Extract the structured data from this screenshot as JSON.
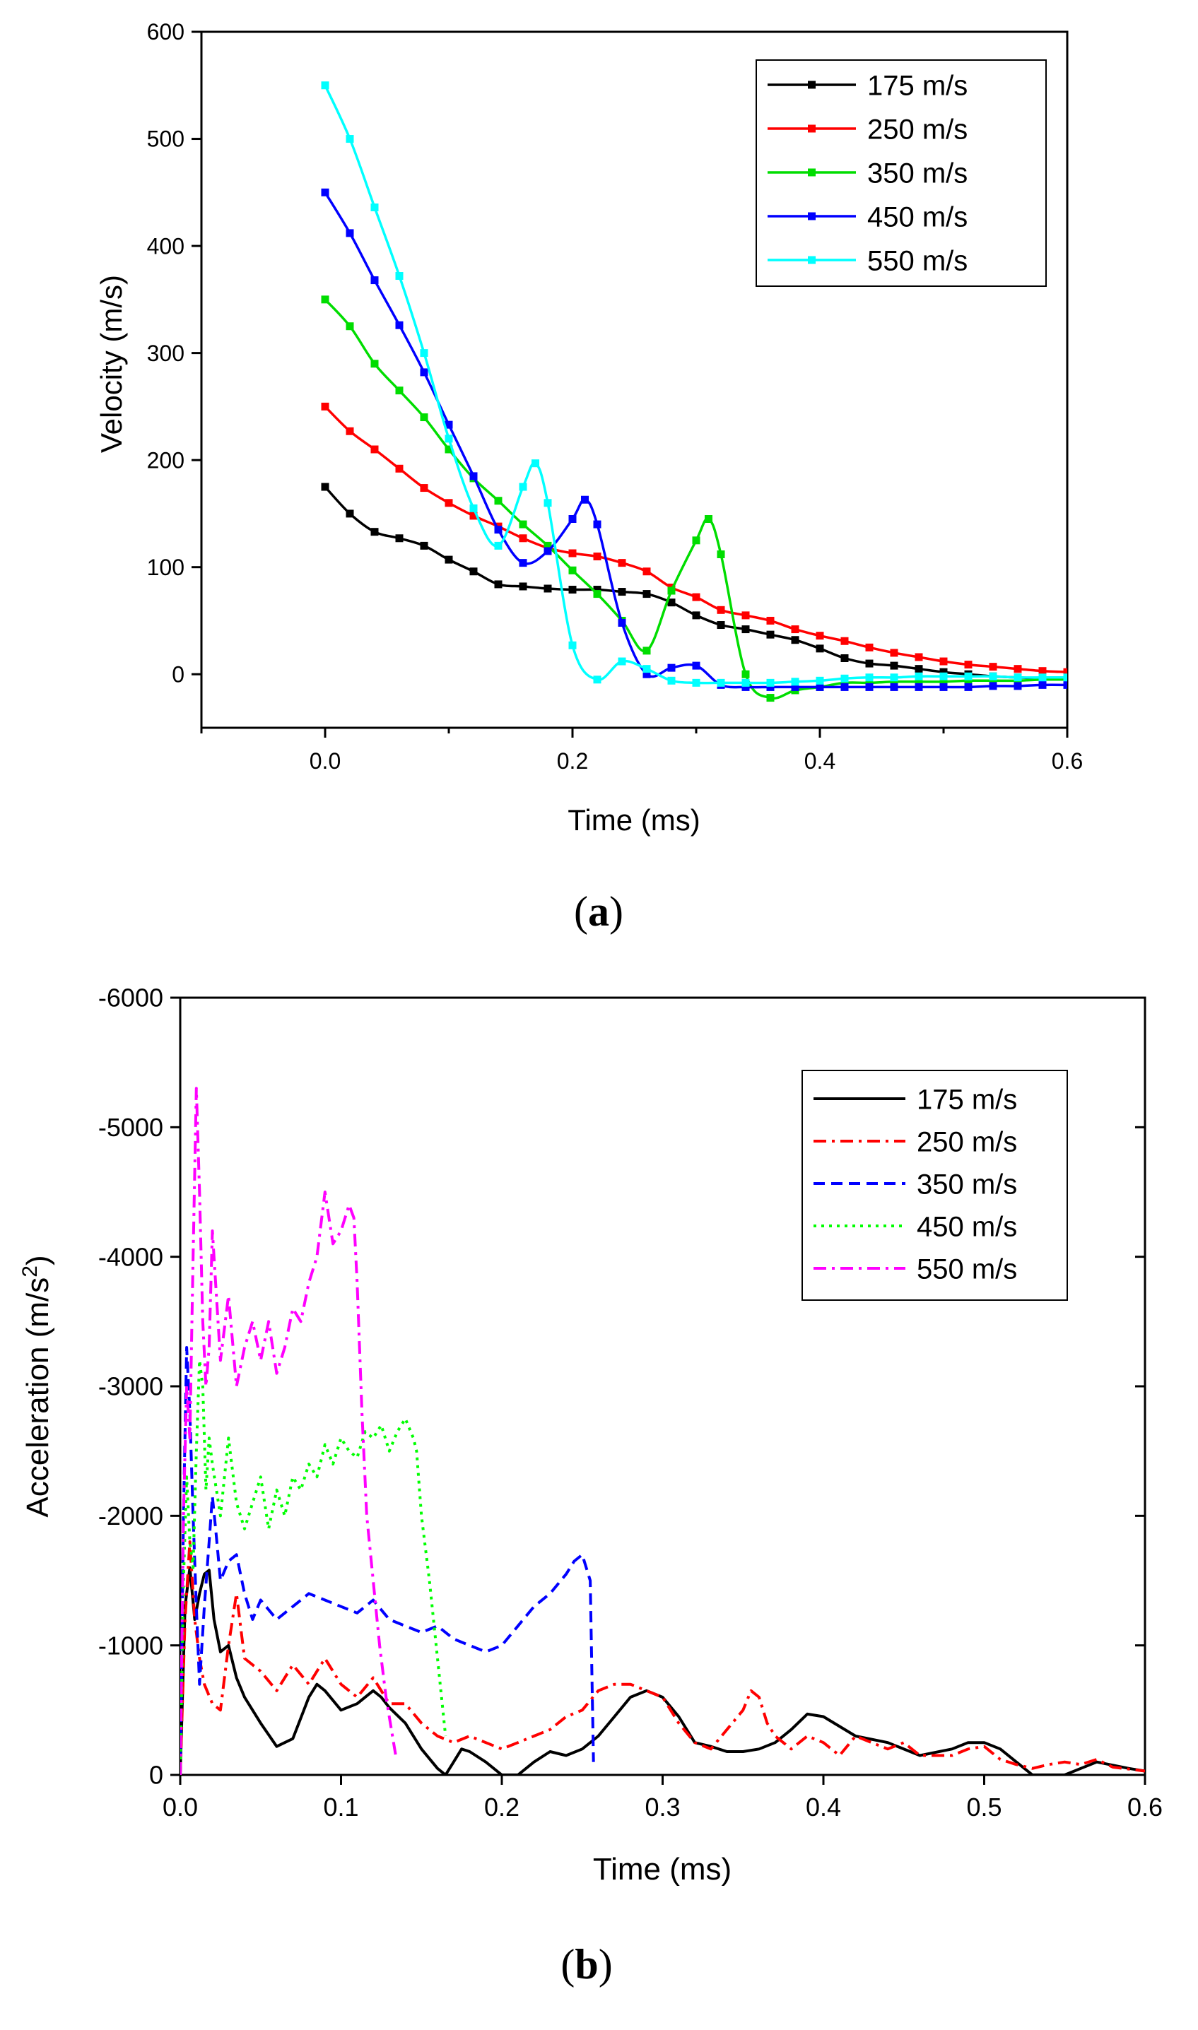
{
  "chart_data": [
    {
      "type": "line",
      "panel_label": "a",
      "xlabel": "Time (ms)",
      "ylabel": "Velocity (m/s)",
      "xlim": [
        -0.1,
        0.6
      ],
      "ylim": [
        -50,
        600
      ],
      "xticks": [
        0.0,
        0.2,
        0.4,
        0.6
      ],
      "xtick_labels": [
        "0.0",
        "0.2",
        "0.4",
        "0.6"
      ],
      "yticks": [
        0,
        100,
        200,
        300,
        400,
        500,
        600
      ],
      "ytick_labels": [
        "0",
        "100",
        "200",
        "300",
        "400",
        "500",
        "600"
      ],
      "grid": false,
      "legend_position": "top-right",
      "markers": "square",
      "series": [
        {
          "name": "175 m/s",
          "color": "#000000",
          "x": [
            0,
            0.02,
            0.04,
            0.06,
            0.08,
            0.1,
            0.12,
            0.14,
            0.16,
            0.18,
            0.2,
            0.22,
            0.24,
            0.26,
            0.28,
            0.3,
            0.32,
            0.34,
            0.36,
            0.38,
            0.4,
            0.42,
            0.44,
            0.46,
            0.48,
            0.5,
            0.52,
            0.54,
            0.56,
            0.58,
            0.6
          ],
          "y": [
            175,
            150,
            133,
            127,
            120,
            107,
            96,
            84,
            82,
            80,
            79,
            79,
            77,
            75,
            67,
            55,
            46,
            42,
            37,
            32,
            24,
            15,
            10,
            8,
            5,
            2,
            0,
            -2,
            -3,
            -4,
            -5
          ]
        },
        {
          "name": "250 m/s",
          "color": "#ff0000",
          "x": [
            0,
            0.02,
            0.04,
            0.06,
            0.08,
            0.1,
            0.12,
            0.14,
            0.16,
            0.18,
            0.2,
            0.22,
            0.24,
            0.26,
            0.28,
            0.3,
            0.32,
            0.34,
            0.36,
            0.38,
            0.4,
            0.42,
            0.44,
            0.46,
            0.48,
            0.5,
            0.52,
            0.54,
            0.56,
            0.58,
            0.6
          ],
          "y": [
            250,
            227,
            210,
            192,
            174,
            160,
            148,
            138,
            127,
            118,
            113,
            110,
            104,
            96,
            81,
            72,
            60,
            55,
            50,
            42,
            36,
            31,
            25,
            20,
            16,
            12,
            9,
            7,
            5,
            3,
            2
          ]
        },
        {
          "name": "350 m/s",
          "color": "#00dd00",
          "x": [
            0,
            0.02,
            0.04,
            0.06,
            0.08,
            0.1,
            0.12,
            0.14,
            0.16,
            0.18,
            0.2,
            0.22,
            0.24,
            0.26,
            0.28,
            0.3,
            0.31,
            0.32,
            0.34,
            0.36,
            0.38,
            0.4,
            0.42,
            0.44,
            0.46,
            0.48,
            0.5,
            0.52,
            0.54,
            0.56,
            0.58,
            0.6
          ],
          "y": [
            350,
            325,
            290,
            265,
            240,
            210,
            183,
            162,
            140,
            120,
            97,
            75,
            50,
            22,
            78,
            125,
            145,
            112,
            0,
            -22,
            -15,
            -12,
            -8,
            -8,
            -7,
            -7,
            -7,
            -6,
            -6,
            -6,
            -5,
            -5
          ]
        },
        {
          "name": "450 m/s",
          "color": "#0000ff",
          "x": [
            0,
            0.02,
            0.04,
            0.06,
            0.08,
            0.1,
            0.12,
            0.14,
            0.16,
            0.18,
            0.2,
            0.21,
            0.22,
            0.24,
            0.26,
            0.28,
            0.3,
            0.32,
            0.34,
            0.36,
            0.38,
            0.4,
            0.42,
            0.44,
            0.46,
            0.48,
            0.5,
            0.52,
            0.54,
            0.56,
            0.58,
            0.6
          ],
          "y": [
            450,
            412,
            368,
            326,
            282,
            233,
            185,
            135,
            104,
            115,
            145,
            163,
            140,
            48,
            0,
            6,
            8,
            -10,
            -12,
            -12,
            -12,
            -12,
            -12,
            -12,
            -12,
            -12,
            -12,
            -12,
            -11,
            -11,
            -10,
            -10
          ]
        },
        {
          "name": "550 m/s",
          "color": "#00ffff",
          "x": [
            0,
            0.02,
            0.04,
            0.06,
            0.08,
            0.1,
            0.12,
            0.14,
            0.16,
            0.17,
            0.18,
            0.2,
            0.22,
            0.24,
            0.26,
            0.28,
            0.3,
            0.32,
            0.34,
            0.36,
            0.38,
            0.4,
            0.42,
            0.44,
            0.46,
            0.48,
            0.5,
            0.52,
            0.54,
            0.56,
            0.58,
            0.6
          ],
          "y": [
            550,
            500,
            436,
            372,
            300,
            220,
            155,
            120,
            175,
            197,
            160,
            27,
            -5,
            12,
            5,
            -6,
            -8,
            -8,
            -8,
            -8,
            -7,
            -6,
            -4,
            -3,
            -3,
            -2,
            -2,
            -2,
            -2,
            -3,
            -3,
            -3
          ]
        }
      ]
    },
    {
      "type": "line",
      "panel_label": "b",
      "xlabel": "Time (ms)",
      "ylabel": "Acceleration (m/s",
      "ylabel_superscript": "2",
      "ylabel_suffix": ")",
      "xlim": [
        0,
        0.6
      ],
      "ylim": [
        0,
        -6000
      ],
      "y_axis_reversed": true,
      "xticks": [
        0.0,
        0.1,
        0.2,
        0.3,
        0.4,
        0.5,
        0.6
      ],
      "xtick_labels": [
        "0.0",
        "0.1",
        "0.2",
        "0.3",
        "0.4",
        "0.5",
        "0.6"
      ],
      "yticks": [
        0,
        -1000,
        -2000,
        -3000,
        -4000,
        -5000,
        -6000
      ],
      "ytick_labels": [
        "0",
        "-1000",
        "-2000",
        "-3000",
        "-4000",
        "-5000",
        "-6000"
      ],
      "grid": false,
      "legend_position": "top-right",
      "series": [
        {
          "name": "175 m/s",
          "color": "#000000",
          "dash": "none",
          "x": [
            0,
            0.003,
            0.006,
            0.009,
            0.012,
            0.015,
            0.018,
            0.021,
            0.025,
            0.03,
            0.035,
            0.04,
            0.05,
            0.06,
            0.07,
            0.08,
            0.085,
            0.09,
            0.1,
            0.11,
            0.12,
            0.125,
            0.13,
            0.14,
            0.15,
            0.16,
            0.165,
            0.17,
            0.175,
            0.18,
            0.19,
            0.2,
            0.21,
            0.22,
            0.23,
            0.24,
            0.25,
            0.26,
            0.27,
            0.28,
            0.29,
            0.3,
            0.31,
            0.32,
            0.33,
            0.34,
            0.35,
            0.36,
            0.37,
            0.38,
            0.39,
            0.4,
            0.42,
            0.44,
            0.46,
            0.48,
            0.49,
            0.5,
            0.51,
            0.52,
            0.53,
            0.55,
            0.57,
            0.59,
            0.6
          ],
          "y": [
            0,
            -1300,
            -1600,
            -1200,
            -1400,
            -1550,
            -1580,
            -1200,
            -950,
            -1000,
            -750,
            -600,
            -400,
            -220,
            -280,
            -600,
            -700,
            -650,
            -500,
            -550,
            -650,
            -600,
            -520,
            -400,
            -200,
            -50,
            0,
            -100,
            -200,
            -180,
            -100,
            0,
            0,
            -100,
            -180,
            -150,
            -200,
            -300,
            -450,
            -600,
            -650,
            -600,
            -450,
            -250,
            -220,
            -180,
            -180,
            -200,
            -250,
            -350,
            -470,
            -450,
            -300,
            -250,
            -150,
            -200,
            -250,
            -250,
            -200,
            -100,
            0,
            0,
            -100,
            -50,
            -30
          ]
        },
        {
          "name": "250 m/s",
          "color": "#ff0000",
          "dash": "dashdot",
          "x": [
            0,
            0.003,
            0.006,
            0.009,
            0.012,
            0.015,
            0.02,
            0.025,
            0.03,
            0.035,
            0.04,
            0.05,
            0.06,
            0.07,
            0.08,
            0.09,
            0.1,
            0.11,
            0.12,
            0.13,
            0.14,
            0.15,
            0.16,
            0.17,
            0.18,
            0.19,
            0.2,
            0.21,
            0.22,
            0.23,
            0.24,
            0.25,
            0.26,
            0.27,
            0.28,
            0.29,
            0.3,
            0.31,
            0.32,
            0.33,
            0.34,
            0.35,
            0.355,
            0.36,
            0.365,
            0.37,
            0.38,
            0.39,
            0.4,
            0.41,
            0.42,
            0.43,
            0.44,
            0.45,
            0.46,
            0.47,
            0.48,
            0.49,
            0.5,
            0.51,
            0.52,
            0.53,
            0.54,
            0.55,
            0.56,
            0.57,
            0.58,
            0.6
          ],
          "y": [
            0,
            -1200,
            -1800,
            -1200,
            -900,
            -700,
            -550,
            -500,
            -1000,
            -1400,
            -900,
            -800,
            -650,
            -850,
            -700,
            -900,
            -700,
            -600,
            -750,
            -550,
            -550,
            -400,
            -300,
            -250,
            -300,
            -250,
            -200,
            -250,
            -300,
            -350,
            -450,
            -500,
            -650,
            -700,
            -700,
            -650,
            -600,
            -400,
            -250,
            -200,
            -350,
            -500,
            -650,
            -600,
            -400,
            -300,
            -200,
            -300,
            -250,
            -150,
            -300,
            -250,
            -200,
            -250,
            -150,
            -150,
            -150,
            -200,
            -220,
            -120,
            -80,
            -50,
            -80,
            -100,
            -80,
            -120,
            -60,
            -30
          ]
        },
        {
          "name": "350 m/s",
          "color": "#0000ff",
          "dash": "dash",
          "x": [
            0,
            0.002,
            0.004,
            0.006,
            0.008,
            0.01,
            0.012,
            0.015,
            0.018,
            0.02,
            0.022,
            0.025,
            0.03,
            0.035,
            0.04,
            0.045,
            0.05,
            0.06,
            0.07,
            0.08,
            0.09,
            0.1,
            0.11,
            0.12,
            0.13,
            0.14,
            0.15,
            0.16,
            0.17,
            0.18,
            0.19,
            0.2,
            0.21,
            0.22,
            0.23,
            0.24,
            0.245,
            0.25,
            0.255,
            0.257
          ],
          "y": [
            0,
            -2000,
            -3300,
            -2800,
            -2000,
            -1300,
            -700,
            -1300,
            -1800,
            -2150,
            -1900,
            -1500,
            -1650,
            -1700,
            -1400,
            -1200,
            -1350,
            -1200,
            -1300,
            -1400,
            -1350,
            -1300,
            -1250,
            -1350,
            -1200,
            -1150,
            -1100,
            -1150,
            -1050,
            -1000,
            -950,
            -1000,
            -1150,
            -1300,
            -1400,
            -1550,
            -1650,
            -1700,
            -1500,
            -100
          ]
        },
        {
          "name": "450 m/s",
          "color": "#00ff00",
          "dash": "dot",
          "x": [
            0,
            0.002,
            0.004,
            0.006,
            0.008,
            0.01,
            0.012,
            0.014,
            0.016,
            0.018,
            0.02,
            0.025,
            0.03,
            0.035,
            0.04,
            0.045,
            0.05,
            0.055,
            0.06,
            0.065,
            0.07,
            0.075,
            0.08,
            0.085,
            0.09,
            0.095,
            0.1,
            0.105,
            0.11,
            0.115,
            0.12,
            0.125,
            0.13,
            0.135,
            0.14,
            0.145,
            0.147,
            0.15,
            0.155,
            0.16,
            0.165
          ],
          "y": [
            0,
            -1500,
            -2300,
            -1800,
            -1600,
            -2500,
            -3200,
            -3000,
            -2200,
            -2600,
            -2400,
            -2000,
            -2600,
            -2100,
            -1900,
            -2100,
            -2300,
            -1900,
            -2200,
            -2000,
            -2300,
            -2200,
            -2400,
            -2300,
            -2550,
            -2400,
            -2600,
            -2500,
            -2450,
            -2650,
            -2600,
            -2700,
            -2500,
            -2650,
            -2750,
            -2600,
            -2500,
            -2000,
            -1500,
            -900,
            -300
          ]
        },
        {
          "name": "550 m/s",
          "color": "#ff00ff",
          "dash": "dashdot",
          "x": [
            0,
            0.002,
            0.004,
            0.006,
            0.008,
            0.01,
            0.012,
            0.014,
            0.016,
            0.018,
            0.02,
            0.025,
            0.03,
            0.035,
            0.04,
            0.045,
            0.05,
            0.055,
            0.06,
            0.065,
            0.07,
            0.075,
            0.08,
            0.085,
            0.09,
            0.095,
            0.1,
            0.105,
            0.108,
            0.11,
            0.113,
            0.116,
            0.12,
            0.124,
            0.128,
            0.132,
            0.134
          ],
          "y": [
            0,
            -2000,
            -3000,
            -2600,
            -4000,
            -5300,
            -4500,
            -3500,
            -3000,
            -3300,
            -4200,
            -3200,
            -3700,
            -3000,
            -3300,
            -3500,
            -3200,
            -3500,
            -3100,
            -3300,
            -3600,
            -3500,
            -3800,
            -4000,
            -4500,
            -4100,
            -4200,
            -4400,
            -4300,
            -3800,
            -2800,
            -2000,
            -1500,
            -1000,
            -600,
            -300,
            -150
          ]
        }
      ]
    }
  ]
}
